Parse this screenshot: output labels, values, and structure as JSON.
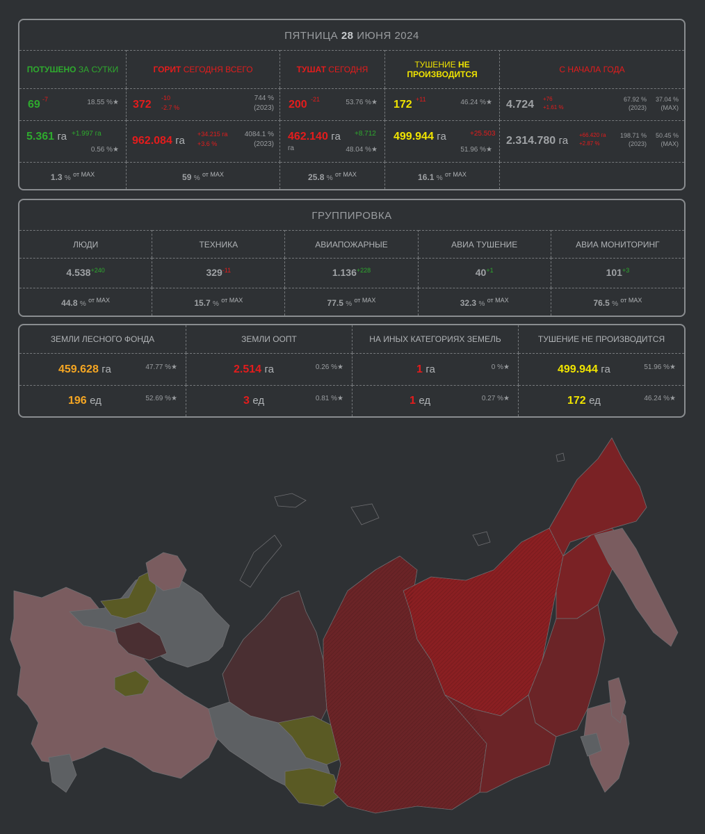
{
  "date": {
    "weekday": "ПЯТНИЦА",
    "day": "28",
    "rest": "ИЮНЯ 2024"
  },
  "fires": {
    "headers": {
      "extinguished": {
        "a": "ПОТУШЕНО",
        "b": "ЗА СУТКИ"
      },
      "burning": {
        "a": "ГОРИТ",
        "b": "СЕГОДНЯ ВСЕГО"
      },
      "fighting": {
        "a": "ТУШАТ",
        "b": "СЕГОДНЯ"
      },
      "not_fought": {
        "a": "ТУШЕНИЕ",
        "b": "НЕ",
        "c": "ПРОИЗВОДИТСЯ"
      },
      "ytd": {
        "a": "С НАЧАЛА ГОДА"
      }
    },
    "count_row": {
      "extinguished": {
        "value": "69",
        "delta": "-7",
        "pct": "18.55 %"
      },
      "burning": {
        "value": "372",
        "delta1": "-10",
        "delta2": "-2.7 %",
        "pct": "744 %",
        "ref": "(2023)"
      },
      "fighting": {
        "value": "200",
        "delta": "-21",
        "pct": "53.76 %"
      },
      "not_fought": {
        "value": "172",
        "delta": "+11",
        "pct": "46.24 %"
      },
      "ytd": {
        "value": "4.724",
        "delta1": "+76",
        "delta2": "+1.61 %",
        "pct1": "67.92 %",
        "ref1": "(2023)",
        "pct2": "37.04 %",
        "ref2": "(MAX)"
      }
    },
    "area_row": {
      "extinguished": {
        "value": "5.361",
        "unit": "га",
        "delta": "+1.997 га",
        "pct": "0.56 %"
      },
      "burning": {
        "value": "962.084",
        "unit": "га",
        "delta1": "+34.215 га",
        "delta2": "+3.6 %",
        "pct": "4084.1 %",
        "ref": "(2023)"
      },
      "fighting": {
        "value": "462.140",
        "unit": "га",
        "delta": "+8.712",
        "unit2": "га",
        "pct": "48.04 %"
      },
      "not_fought": {
        "value": "499.944",
        "unit": "га",
        "delta": "+25.503",
        "pct": "51.96 %"
      },
      "ytd": {
        "value": "2.314.780",
        "unit": "га",
        "delta1": "+66.420 га",
        "delta2": "+2.87 %",
        "pct1": "198.71 %",
        "ref1": "(2023)",
        "pct2": "50.45 %",
        "ref2": "(MAX)"
      }
    },
    "max_row": [
      {
        "value": "1.3",
        "unit": "%",
        "label": "от MAX"
      },
      {
        "value": "59",
        "unit": "%",
        "label": "от MAX"
      },
      {
        "value": "25.8",
        "unit": "%",
        "label": "от MAX"
      },
      {
        "value": "16.1",
        "unit": "%",
        "label": "от MAX"
      }
    ]
  },
  "group": {
    "title": "ГРУППИРОВКА",
    "cols": [
      {
        "label": "ЛЮДИ",
        "value": "4.538",
        "delta": "+240",
        "pct": "44.8",
        "unit": "%",
        "of": "от MAX"
      },
      {
        "label": "ТЕХНИКА",
        "value": "329",
        "delta": "-11",
        "pct": "15.7",
        "unit": "%",
        "of": "от MAX"
      },
      {
        "label": "АВИАПОЖАРНЫЕ",
        "value": "1.136",
        "delta": "+228",
        "pct": "77.5",
        "unit": "%",
        "of": "от MAX"
      },
      {
        "label": "АВИА ТУШЕНИЕ",
        "value": "40",
        "delta": "+1",
        "pct": "32.3",
        "unit": "%",
        "of": "от MAX"
      },
      {
        "label": "АВИА МОНИТОРИНГ",
        "value": "101",
        "delta": "+3",
        "pct": "76.5",
        "unit": "%",
        "of": "от MAX"
      }
    ]
  },
  "lands": {
    "cols": [
      {
        "label": "ЗЕМЛИ ЛЕСНОГО ФОНДА",
        "area": "459.628",
        "area_unit": "га",
        "area_pct": "47.77 %",
        "count": "196",
        "count_unit": "ед",
        "count_pct": "52.69 %"
      },
      {
        "label": "ЗЕМЛИ ООПТ",
        "area": "2.514",
        "area_unit": "га",
        "area_pct": "0.26 %",
        "count": "3",
        "count_unit": "ед",
        "count_pct": "0.81 %"
      },
      {
        "label": "НА ИНЫХ КАТЕГОРИЯХ ЗЕМЕЛЬ",
        "area": "1",
        "area_unit": "га",
        "area_pct": "0 %",
        "count": "1",
        "count_unit": "ед",
        "count_pct": "0.27 %"
      },
      {
        "label": "ТУШЕНИЕ НЕ ПРОИЗВОДИТСЯ",
        "area": "499.944",
        "area_unit": "га",
        "area_pct": "51.96 %",
        "count": "172",
        "count_unit": "ед",
        "count_pct": "46.24 %"
      }
    ]
  },
  "star": "★",
  "colors": {
    "green": "#2eaa2e",
    "red": "#e41c1c",
    "yellow": "#f0e400",
    "orange": "#f5a623",
    "map_red": "#7a2225",
    "map_dark": "#4a2f32",
    "map_pink": "#7a5c5f",
    "map_grey": "#5d6063",
    "map_olive": "#5a5a24"
  }
}
